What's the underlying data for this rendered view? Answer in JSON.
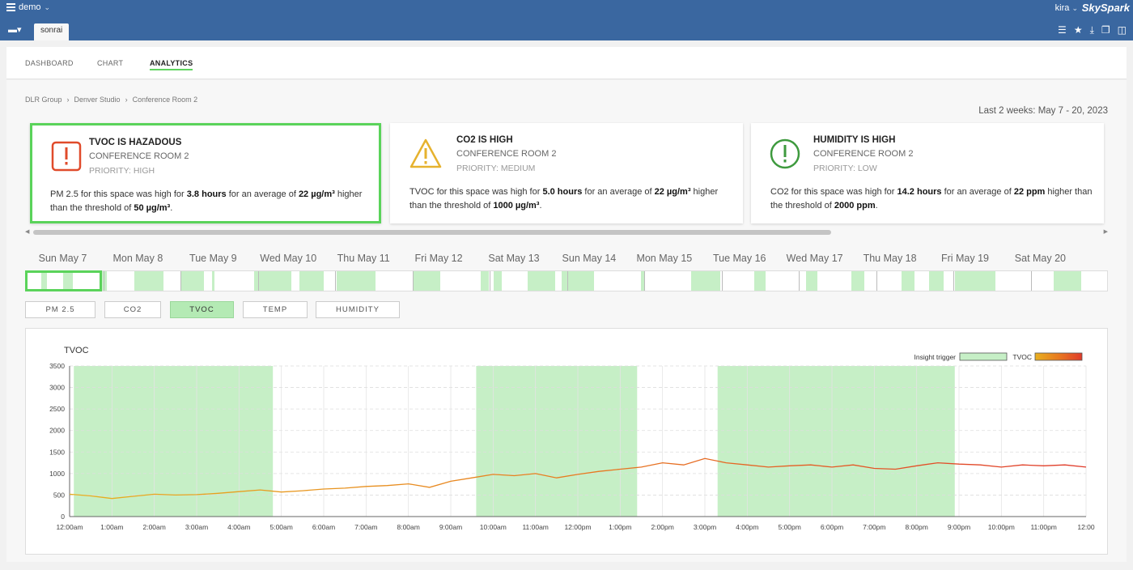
{
  "topbar": {
    "project": "demo",
    "user": "kira",
    "brand": "SkySpark"
  },
  "tabbar": {
    "tab": "sonrai"
  },
  "nav": {
    "tabs": [
      "DASHBOARD",
      "CHART",
      "ANALYTICS"
    ],
    "active": "ANALYTICS"
  },
  "breadcrumb": [
    "DLR Group",
    "Denver Studio",
    "Conference Room 2"
  ],
  "date_range": "Last 2 weeks: May 7 - 20, 2023",
  "cards": [
    {
      "title": "TVOC IS HAZADOUS",
      "room": "CONFERENCE ROOM 2",
      "priority": "PRIORITY: HIGH",
      "color": "#e04b2b",
      "icon": "error-square-icon",
      "desc": {
        "prefix": "PM 2.5 for this space was high for ",
        "duration": "3.8 hours",
        "mid": " for an average of ",
        "avg": "22 µg/m³",
        "mid2": " higher than the threshold of ",
        "threshold": "50 µg/m³",
        "suffix": "."
      }
    },
    {
      "title": "CO2 IS HIGH",
      "room": "CONFERENCE ROOM 2",
      "priority": "PRIORITY: MEDIUM",
      "color": "#e6b22e",
      "icon": "warning-triangle-icon",
      "desc": {
        "prefix": "TVOC for this space was high for ",
        "duration": "5.0 hours",
        "mid": " for an average of ",
        "avg": "22 µg/m³",
        "mid2": " higher than the threshold of ",
        "threshold": "1000 µg/m³",
        "suffix": "."
      }
    },
    {
      "title": "HUMIDITY IS HIGH",
      "room": "CONFERENCE ROOM 2",
      "priority": "PRIORITY: LOW",
      "color": "#3e9a3e",
      "icon": "info-circle-icon",
      "desc": {
        "prefix": "CO2 for this space was high for ",
        "duration": "14.2 hours",
        "mid": " for an average of ",
        "avg": "22 ppm",
        "mid2": " higher than the threshold of ",
        "threshold": "2000 ppm",
        "suffix": "."
      }
    }
  ],
  "days": [
    "Sun May 7",
    "Mon May 8",
    "Tue May 9",
    "Wed May 10",
    "Thu May 11",
    "Fri May 12",
    "Sat May 13",
    "Sun May 14",
    "Mon May 15",
    "Tue May 16",
    "Wed May 17",
    "Thu May 18",
    "Fri May 19",
    "Sat May 20"
  ],
  "selected_day": "Sun May 7",
  "metrics": [
    "PM 2.5",
    "CO2",
    "TVOC",
    "TEMP",
    "HUMIDITY"
  ],
  "active_metric": "TVOC",
  "chart_data": {
    "type": "line",
    "title": "TVOC",
    "legend": [
      "Insight trigger",
      "TVOC"
    ],
    "legend_position": "top-right",
    "ylim": [
      0,
      3500
    ],
    "yticks": [
      0,
      500,
      1000,
      1500,
      2000,
      2500,
      3000,
      3500
    ],
    "xticks": [
      "12:00am",
      "1:00am",
      "2:00am",
      "3:00am",
      "4:00am",
      "5:00am",
      "6:00am",
      "7:00am",
      "8:00am",
      "9:00am",
      "10:00am",
      "11:00am",
      "12:00pm",
      "1:00pm",
      "2:00pm",
      "3:00pm",
      "4:00pm",
      "5:00pm",
      "6:00pm",
      "7:00pm",
      "8:00pm",
      "9:00pm",
      "10:00pm",
      "11:00pm",
      "12:00"
    ],
    "grid": true,
    "insight_trigger_hours": [
      [
        0.1,
        4.8
      ],
      [
        9.6,
        13.4
      ],
      [
        15.3,
        20.9
      ]
    ],
    "series": [
      {
        "name": "TVOC",
        "x": [
          0,
          0.5,
          1,
          1.5,
          2,
          2.5,
          3,
          3.5,
          4,
          4.5,
          5,
          5.5,
          6,
          6.5,
          7,
          7.5,
          8,
          8.5,
          9,
          9.5,
          10,
          10.5,
          11,
          11.5,
          12,
          12.5,
          13,
          13.5,
          14,
          14.5,
          15,
          15.5,
          16,
          16.5,
          17,
          17.5,
          18,
          18.5,
          19,
          19.5,
          20,
          20.5,
          21,
          21.5,
          22,
          22.5,
          23,
          23.5,
          24
        ],
        "values": [
          520,
          480,
          420,
          470,
          520,
          500,
          510,
          540,
          580,
          620,
          570,
          600,
          640,
          660,
          700,
          720,
          760,
          680,
          820,
          900,
          980,
          950,
          1000,
          900,
          980,
          1050,
          1100,
          1150,
          1250,
          1200,
          1350,
          1250,
          1200,
          1150,
          1180,
          1200,
          1150,
          1200,
          1120,
          1100,
          1180,
          1250,
          1220,
          1200,
          1150,
          1200,
          1180,
          1200,
          1150
        ]
      }
    ],
    "colors": {
      "trigger": "#c6efc6",
      "line_low": "#e8b020",
      "line_high": "#e05030"
    }
  }
}
